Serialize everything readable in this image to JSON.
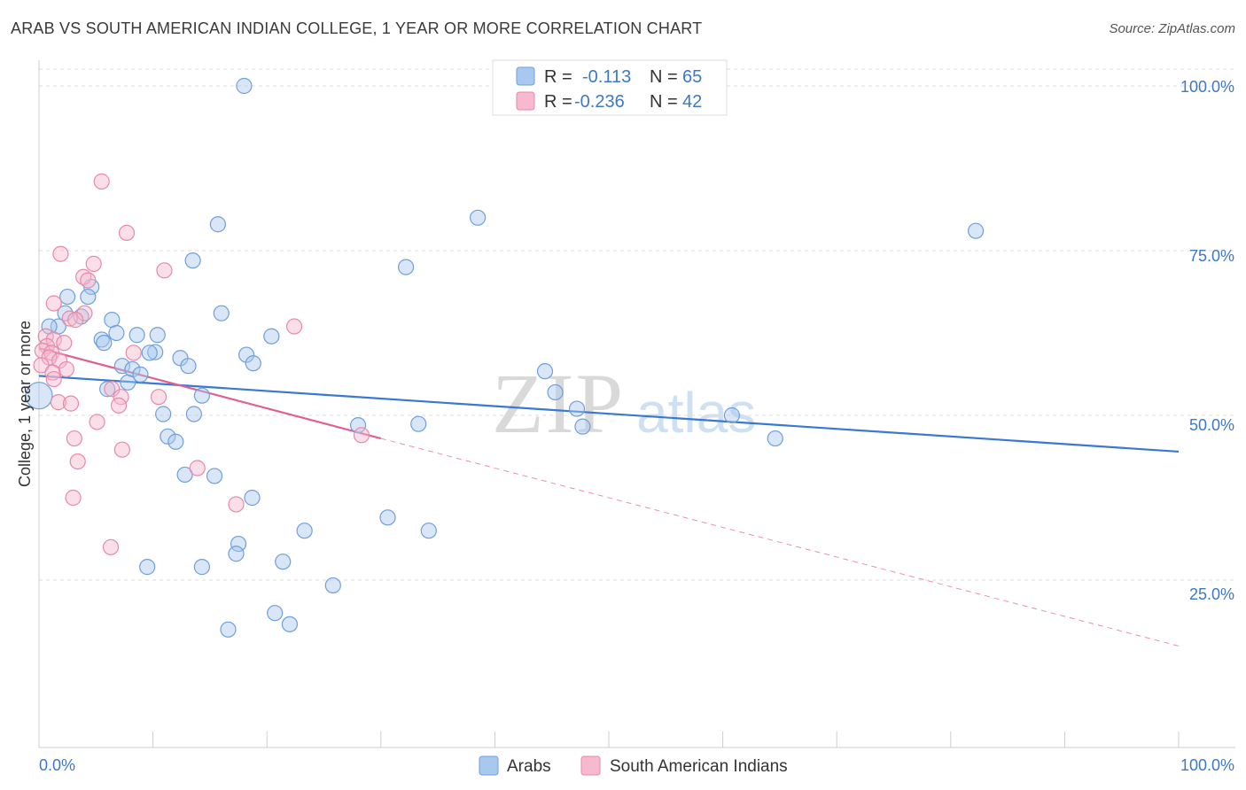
{
  "header": {
    "title": "ARAB VS SOUTH AMERICAN INDIAN COLLEGE, 1 YEAR OR MORE CORRELATION CHART",
    "source": "Source: ZipAtlas.com"
  },
  "watermark": {
    "zip": "ZIP",
    "atlas": "atlas"
  },
  "legend": {
    "rows": [
      {
        "r_label": "R =",
        "r_value": "-0.113",
        "n_label": "N =",
        "n_value": "65",
        "color": "#a9c8f0",
        "stroke": "#6f9fdc"
      },
      {
        "r_label": "R =",
        "r_value": "-0.236",
        "n_label": "N =",
        "n_value": "42",
        "color": "#f7b9cd",
        "stroke": "#e889a8"
      }
    ]
  },
  "bottom_legend": [
    {
      "label": "Arabs",
      "color": "#a9c8f0",
      "stroke": "#6f9fdc"
    },
    {
      "label": "South American Indians",
      "color": "#f7b9cd",
      "stroke": "#e889a8"
    }
  ],
  "chart_data": {
    "type": "scatter",
    "title": "ARAB VS SOUTH AMERICAN INDIAN COLLEGE, 1 YEAR OR MORE CORRELATION CHART",
    "xlabel": "",
    "ylabel": "College, 1 year or more",
    "xlim": [
      0,
      100
    ],
    "ylim": [
      0,
      102
    ],
    "x_tick_labels": [
      "0.0%",
      "100.0%"
    ],
    "y_tick_labels": [
      "25.0%",
      "50.0%",
      "75.0%",
      "100.0%"
    ],
    "y_ticks": [
      25,
      50,
      75,
      100
    ],
    "grid": true,
    "colors": {
      "arabs": "#3a78d4",
      "sai": "#e0608f",
      "arabs_fill": "#a9c8f0",
      "sai_fill": "#f7b9cd"
    },
    "series": [
      {
        "name": "Arabs",
        "trend": {
          "x0": 0,
          "y0": 56,
          "x1": 100,
          "y1": 44.5,
          "dashed_from": null
        },
        "points": [
          [
            18,
            100
          ],
          [
            38.5,
            80
          ],
          [
            15.7,
            79
          ],
          [
            82.2,
            78
          ],
          [
            13.5,
            73.5
          ],
          [
            32.2,
            72.5
          ],
          [
            2.5,
            68
          ],
          [
            4.6,
            69.5
          ],
          [
            4.3,
            68
          ],
          [
            16,
            65.5
          ],
          [
            2.3,
            65.5
          ],
          [
            3.7,
            65
          ],
          [
            6.4,
            64.5
          ],
          [
            1.7,
            63.5
          ],
          [
            0.9,
            63.5
          ],
          [
            6.8,
            62.5
          ],
          [
            8.6,
            62.2
          ],
          [
            10.4,
            62.2
          ],
          [
            20.4,
            62
          ],
          [
            5.5,
            61.5
          ],
          [
            5.7,
            61
          ],
          [
            10.2,
            59.6
          ],
          [
            9.7,
            59.5
          ],
          [
            18.2,
            59.2
          ],
          [
            12.4,
            58.7
          ],
          [
            18.8,
            57.9
          ],
          [
            7.3,
            57.5
          ],
          [
            13.1,
            57.5
          ],
          [
            8.2,
            57
          ],
          [
            8.9,
            56.2
          ],
          [
            44.4,
            56.7
          ],
          [
            7.8,
            55
          ],
          [
            6,
            54
          ],
          [
            45.3,
            53.5
          ],
          [
            14.3,
            53
          ],
          [
            0,
            53
          ],
          [
            47.2,
            51
          ],
          [
            10.9,
            50.2
          ],
          [
            13.6,
            50.2
          ],
          [
            60.8,
            50
          ],
          [
            28,
            48.5
          ],
          [
            33.3,
            48.7
          ],
          [
            47.7,
            48.3
          ],
          [
            11.3,
            46.8
          ],
          [
            12,
            46
          ],
          [
            64.6,
            46.5
          ],
          [
            12.8,
            41
          ],
          [
            15.4,
            40.8
          ],
          [
            18.7,
            37.5
          ],
          [
            30.6,
            34.5
          ],
          [
            23.3,
            32.5
          ],
          [
            34.2,
            32.5
          ],
          [
            17.5,
            30.5
          ],
          [
            17.3,
            29
          ],
          [
            21.4,
            27.8
          ],
          [
            9.5,
            27
          ],
          [
            14.3,
            27
          ],
          [
            25.8,
            24.2
          ],
          [
            20.7,
            20
          ],
          [
            22,
            18.3
          ],
          [
            16.6,
            17.5
          ]
        ]
      },
      {
        "name": "South American Indians",
        "trend": {
          "x0": 0,
          "y0": 60.2,
          "x1": 30,
          "y1": 46.5,
          "dashed_to_x": 100,
          "dashed_to_y": 15
        },
        "points": [
          [
            5.5,
            85.5
          ],
          [
            7.7,
            77.7
          ],
          [
            1.9,
            74.5
          ],
          [
            11,
            72
          ],
          [
            4.8,
            73
          ],
          [
            3.9,
            71
          ],
          [
            4.3,
            70.5
          ],
          [
            1.3,
            67
          ],
          [
            4,
            65.5
          ],
          [
            2.7,
            64.7
          ],
          [
            3.2,
            64.5
          ],
          [
            22.4,
            63.5
          ],
          [
            0.6,
            62
          ],
          [
            1.3,
            61.5
          ],
          [
            2.2,
            61
          ],
          [
            0.7,
            60.5
          ],
          [
            0.3,
            59.8
          ],
          [
            1.1,
            59.5
          ],
          [
            8.3,
            59.5
          ],
          [
            0.9,
            58.8
          ],
          [
            1.8,
            58.3
          ],
          [
            0.2,
            57.6
          ],
          [
            2.4,
            57
          ],
          [
            1.2,
            56.5
          ],
          [
            1.3,
            55.5
          ],
          [
            6.4,
            54
          ],
          [
            7.2,
            52.8
          ],
          [
            10.5,
            52.8
          ],
          [
            1.7,
            52
          ],
          [
            2.8,
            51.8
          ],
          [
            7,
            51.5
          ],
          [
            5.1,
            49
          ],
          [
            28.3,
            47
          ],
          [
            3.1,
            46.5
          ],
          [
            7.3,
            44.8
          ],
          [
            3.4,
            43
          ],
          [
            13.9,
            42
          ],
          [
            3,
            37.5
          ],
          [
            17.3,
            36.5
          ],
          [
            6.3,
            30
          ]
        ]
      }
    ]
  }
}
